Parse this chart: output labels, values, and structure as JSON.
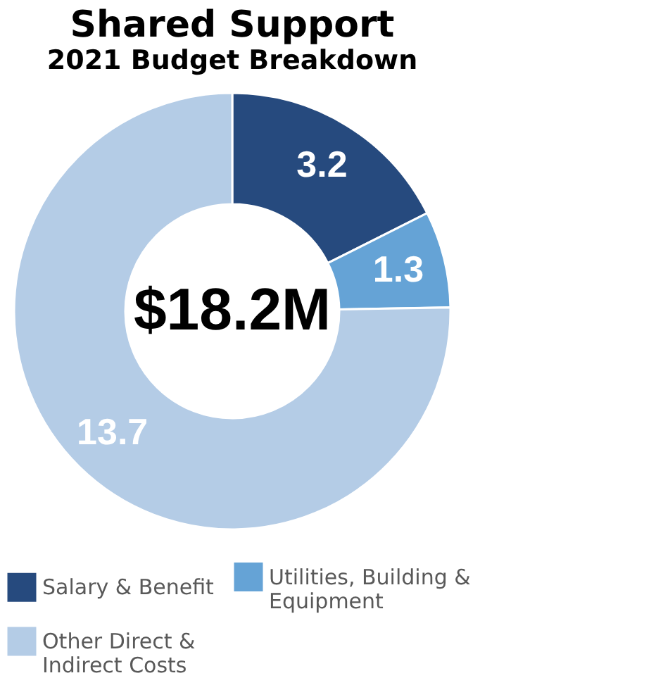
{
  "chart_data": {
    "type": "donut",
    "title": "Shared Support",
    "subtitle": "2021 Budget Breakdown",
    "categories": [
      "Salary & Benefit",
      "Utilities, Building & Equipment",
      "Other Direct & Indirect Costs"
    ],
    "values": [
      3.2,
      1.3,
      13.7
    ],
    "colors": [
      "#264a7e",
      "#65a3d6",
      "#b4cce6"
    ],
    "data_labels": true,
    "legend": "bottom",
    "annotations": [
      "$18.2M"
    ]
  }
}
